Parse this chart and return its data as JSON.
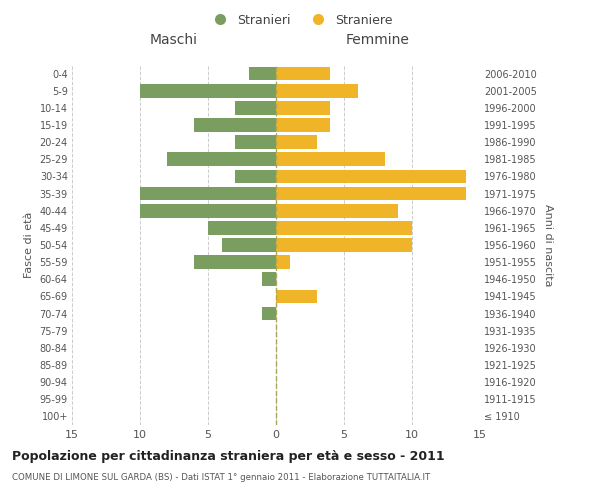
{
  "age_groups": [
    "100+",
    "95-99",
    "90-94",
    "85-89",
    "80-84",
    "75-79",
    "70-74",
    "65-69",
    "60-64",
    "55-59",
    "50-54",
    "45-49",
    "40-44",
    "35-39",
    "30-34",
    "25-29",
    "20-24",
    "15-19",
    "10-14",
    "5-9",
    "0-4"
  ],
  "birth_years": [
    "≤ 1910",
    "1911-1915",
    "1916-1920",
    "1921-1925",
    "1926-1930",
    "1931-1935",
    "1936-1940",
    "1941-1945",
    "1946-1950",
    "1951-1955",
    "1956-1960",
    "1961-1965",
    "1966-1970",
    "1971-1975",
    "1976-1980",
    "1981-1985",
    "1986-1990",
    "1991-1995",
    "1996-2000",
    "2001-2005",
    "2006-2010"
  ],
  "males": [
    0,
    0,
    0,
    0,
    0,
    0,
    1,
    0,
    1,
    6,
    4,
    5,
    10,
    10,
    3,
    8,
    3,
    6,
    3,
    10,
    2
  ],
  "females": [
    0,
    0,
    0,
    0,
    0,
    0,
    0,
    3,
    0,
    1,
    10,
    10,
    9,
    14,
    14,
    8,
    3,
    4,
    4,
    6,
    4
  ],
  "male_color": "#7a9e5f",
  "female_color": "#f0b429",
  "title": "Popolazione per cittadinanza straniera per età e sesso - 2011",
  "subtitle": "COMUNE DI LIMONE SUL GARDA (BS) - Dati ISTAT 1° gennaio 2011 - Elaborazione TUTTAITALIA.IT",
  "xlabel_left": "Maschi",
  "xlabel_right": "Femmine",
  "ylabel_left": "Fasce di età",
  "ylabel_right": "Anni di nascita",
  "legend_male": "Stranieri",
  "legend_female": "Straniere",
  "xlim": 15,
  "background_color": "#ffffff",
  "grid_color": "#cccccc",
  "bar_height": 0.8
}
